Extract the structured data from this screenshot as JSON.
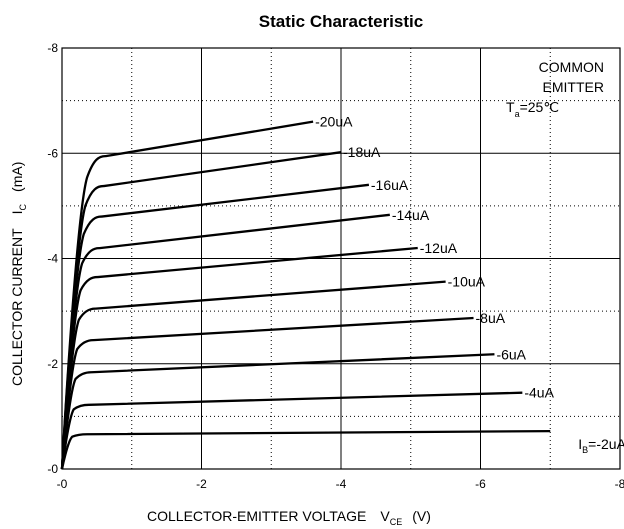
{
  "chart_data": {
    "type": "line",
    "title": "Static Characteristic",
    "xlabel": {
      "main": "COLLECTOR-EMITTER VOLTAGE",
      "symbol": "V",
      "subscript": "CE",
      "unit": "(V)"
    },
    "ylabel": {
      "main": "COLLECTOR CURRENT",
      "symbol": "I",
      "subscript": "C",
      "unit": "(mA)"
    },
    "xlim": [
      0,
      -8
    ],
    "ylim": [
      0,
      -8
    ],
    "xticks": [
      "-0",
      "-2",
      "-4",
      "-6",
      "-8"
    ],
    "yticks": [
      "-0",
      "-2",
      "-4",
      "-6",
      "-8"
    ],
    "grid": "solid at major ticks, dotted at midpoints",
    "annotation": {
      "line1": "COMMON",
      "line2": "EMITTER",
      "line3_symbol": "T",
      "line3_sub": "a",
      "line3_value": "=25℃"
    },
    "series": [
      {
        "name": "-2uA",
        "prefix_symbol": "I",
        "prefix_sub": "B",
        "label_text": "=-2uA",
        "sat": -0.66,
        "end": [
          -7.0,
          -0.72
        ]
      },
      {
        "name": "-4uA",
        "label_text": "-4uA",
        "sat": -1.22,
        "end": [
          -6.6,
          -1.45
        ]
      },
      {
        "name": "-6uA",
        "label_text": "-6uA",
        "sat": -1.84,
        "end": [
          -6.2,
          -2.18
        ]
      },
      {
        "name": "-8uA",
        "label_text": "-8uA",
        "sat": -2.45,
        "end": [
          -5.9,
          -2.87
        ]
      },
      {
        "name": "-10uA",
        "label_text": "-10uA",
        "sat": -3.05,
        "end": [
          -5.5,
          -3.56
        ]
      },
      {
        "name": "-12uA",
        "label_text": "-12uA",
        "sat": -3.65,
        "end": [
          -5.1,
          -4.2
        ]
      },
      {
        "name": "-14uA",
        "label_text": "-14uA",
        "sat": -4.2,
        "end": [
          -4.7,
          -4.83
        ]
      },
      {
        "name": "-16uA",
        "label_text": "-16uA",
        "sat": -4.8,
        "end": [
          -4.4,
          -5.4
        ]
      },
      {
        "name": "-18uA",
        "label_text": "-18uA",
        "sat": -5.38,
        "end": [
          -4.0,
          -6.02
        ]
      },
      {
        "name": "-20uA",
        "label_text": "-20uA",
        "sat": -5.95,
        "end": [
          -3.6,
          -6.6
        ]
      }
    ]
  }
}
